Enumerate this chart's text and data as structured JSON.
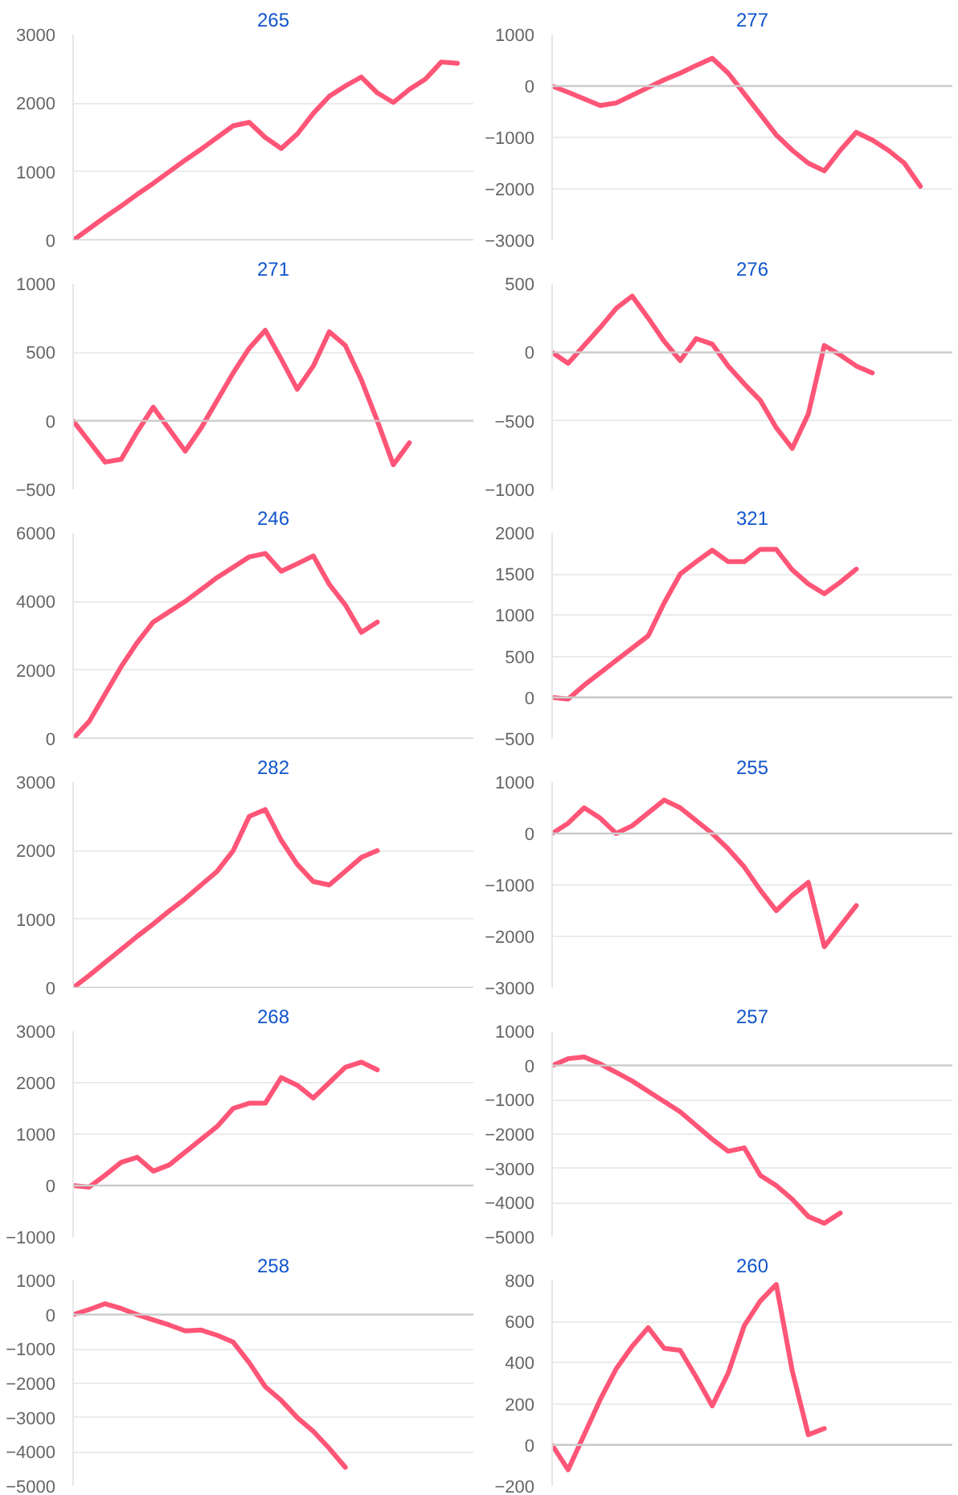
{
  "chart_data": [
    {
      "type": "line",
      "title": "265",
      "color": "#ff5577",
      "grid": "y",
      "tick_labels": "y",
      "ylim": [
        0,
        3000
      ],
      "yticks": [
        0,
        1000,
        2000,
        3000
      ],
      "ref_lines": [
        {
          "axis": "y",
          "value": 0,
          "color": "#cccccc"
        }
      ],
      "categories": [
        null,
        null,
        null,
        null,
        null,
        null,
        null,
        null,
        null,
        null,
        null,
        null,
        null,
        null,
        null,
        null,
        null,
        null,
        null,
        null,
        null,
        null,
        null,
        null,
        null,
        null
      ],
      "values": [
        0,
        170,
        340,
        500,
        670,
        830,
        1000,
        1170,
        1330,
        1500,
        1670,
        1720,
        1500,
        1340,
        1550,
        1850,
        2100,
        2250,
        2380,
        2150,
        2010,
        2200,
        2350,
        2600,
        2580,
        null
      ]
    },
    {
      "type": "line",
      "title": "277",
      "color": "#ff5577",
      "grid": "y",
      "tick_labels": "y",
      "ylim": [
        -3000,
        1000
      ],
      "yticks": [
        -3000,
        -2000,
        -1000,
        0,
        1000
      ],
      "ref_lines": [
        {
          "axis": "y",
          "value": 0,
          "color": "#cccccc"
        }
      ],
      "categories": [
        null,
        null,
        null,
        null,
        null,
        null,
        null,
        null,
        null,
        null,
        null,
        null,
        null,
        null,
        null,
        null,
        null,
        null,
        null,
        null,
        null,
        null,
        null,
        null,
        null,
        null
      ],
      "values": [
        0,
        -120,
        -250,
        -380,
        -330,
        -180,
        -30,
        120,
        250,
        400,
        540,
        250,
        -150,
        -550,
        -950,
        -1250,
        -1500,
        -1650,
        -1250,
        -900,
        -1050,
        -1250,
        -1500,
        -1950,
        null,
        null
      ]
    },
    {
      "type": "line",
      "title": "271",
      "color": "#ff5577",
      "grid": "y",
      "tick_labels": "y",
      "ylim": [
        -500,
        1000
      ],
      "yticks": [
        -500,
        0,
        500,
        1000
      ],
      "ref_lines": [
        {
          "axis": "y",
          "value": 0,
          "color": "#cccccc"
        }
      ],
      "categories": [
        null,
        null,
        null,
        null,
        null,
        null,
        null,
        null,
        null,
        null,
        null,
        null,
        null,
        null,
        null,
        null,
        null,
        null,
        null,
        null,
        null,
        null,
        null,
        null,
        null,
        null
      ],
      "values": [
        0,
        -150,
        -300,
        -280,
        -80,
        100,
        -60,
        -220,
        -50,
        150,
        350,
        530,
        660,
        450,
        230,
        400,
        650,
        550,
        300,
        0,
        -320,
        -160,
        null,
        null,
        null,
        null
      ]
    },
    {
      "type": "line",
      "title": "276",
      "color": "#ff5577",
      "grid": "y",
      "tick_labels": "y",
      "ylim": [
        -1000,
        500
      ],
      "yticks": [
        -1000,
        -500,
        0,
        500
      ],
      "ref_lines": [
        {
          "axis": "y",
          "value": 0,
          "color": "#cccccc"
        }
      ],
      "categories": [
        null,
        null,
        null,
        null,
        null,
        null,
        null,
        null,
        null,
        null,
        null,
        null,
        null,
        null,
        null,
        null,
        null,
        null,
        null,
        null,
        null,
        null,
        null,
        null,
        null,
        null
      ],
      "values": [
        0,
        -80,
        50,
        180,
        320,
        410,
        250,
        80,
        -60,
        100,
        60,
        -100,
        -230,
        -350,
        -550,
        -700,
        -450,
        50,
        -20,
        -100,
        -150,
        null,
        null,
        null,
        null,
        null
      ]
    },
    {
      "type": "line",
      "title": "246",
      "color": "#ff5577",
      "grid": "y",
      "tick_labels": "y",
      "ylim": [
        0,
        6000
      ],
      "yticks": [
        0,
        2000,
        4000,
        6000
      ],
      "ref_lines": [
        {
          "axis": "y",
          "value": 0,
          "color": "#cccccc"
        }
      ],
      "categories": [
        null,
        null,
        null,
        null,
        null,
        null,
        null,
        null,
        null,
        null,
        null,
        null,
        null,
        null,
        null,
        null,
        null,
        null,
        null,
        null,
        null,
        null,
        null,
        null,
        null,
        null
      ],
      "values": [
        0,
        500,
        1300,
        2100,
        2800,
        3400,
        3700,
        4000,
        4350,
        4700,
        5000,
        5300,
        5400,
        4880,
        5100,
        5330,
        4500,
        3900,
        3100,
        3400,
        null,
        null,
        null,
        null,
        null,
        null
      ]
    },
    {
      "type": "line",
      "title": "321",
      "color": "#ff5577",
      "grid": "y",
      "tick_labels": "y",
      "ylim": [
        -500,
        2000
      ],
      "yticks": [
        -500,
        0,
        500,
        1000,
        1500,
        2000
      ],
      "ref_lines": [
        {
          "axis": "y",
          "value": 0,
          "color": "#cccccc"
        }
      ],
      "categories": [
        null,
        null,
        null,
        null,
        null,
        null,
        null,
        null,
        null,
        null,
        null,
        null,
        null,
        null,
        null,
        null,
        null,
        null,
        null,
        null,
        null,
        null,
        null,
        null,
        null,
        null
      ],
      "values": [
        0,
        -20,
        150,
        300,
        450,
        600,
        750,
        1150,
        1500,
        1650,
        1790,
        1650,
        1650,
        1800,
        1800,
        1550,
        1380,
        1260,
        1400,
        1560,
        null,
        null,
        null,
        null,
        null,
        null
      ]
    },
    {
      "type": "line",
      "title": "282",
      "color": "#ff5577",
      "grid": "y",
      "tick_labels": "y",
      "ylim": [
        0,
        3000
      ],
      "yticks": [
        0,
        1000,
        2000,
        3000
      ],
      "ref_lines": [
        {
          "axis": "y",
          "value": 0,
          "color": "#cccccc"
        }
      ],
      "categories": [
        null,
        null,
        null,
        null,
        null,
        null,
        null,
        null,
        null,
        null,
        null,
        null,
        null,
        null,
        null,
        null,
        null,
        null,
        null,
        null,
        null,
        null,
        null,
        null,
        null,
        null
      ],
      "values": [
        0,
        180,
        370,
        560,
        750,
        930,
        1120,
        1300,
        1500,
        1700,
        2000,
        2500,
        2600,
        2150,
        1800,
        1550,
        1500,
        1700,
        1900,
        2000,
        null,
        null,
        null,
        null,
        null,
        null
      ]
    },
    {
      "type": "line",
      "title": "255",
      "color": "#ff5577",
      "grid": "y",
      "tick_labels": "y",
      "ylim": [
        -3000,
        1000
      ],
      "yticks": [
        -3000,
        -2000,
        -1000,
        0,
        1000
      ],
      "ref_lines": [
        {
          "axis": "y",
          "value": 0,
          "color": "#cccccc"
        }
      ],
      "categories": [
        null,
        null,
        null,
        null,
        null,
        null,
        null,
        null,
        null,
        null,
        null,
        null,
        null,
        null,
        null,
        null,
        null,
        null,
        null,
        null,
        null,
        null,
        null,
        null,
        null,
        null
      ],
      "values": [
        0,
        200,
        500,
        300,
        0,
        150,
        400,
        650,
        500,
        250,
        0,
        -300,
        -650,
        -1100,
        -1500,
        -1200,
        -950,
        -2200,
        -1800,
        -1400,
        null,
        null,
        null,
        null,
        null,
        null
      ]
    },
    {
      "type": "line",
      "title": "268",
      "color": "#ff5577",
      "grid": "y",
      "tick_labels": "y",
      "ylim": [
        -1000,
        3000
      ],
      "yticks": [
        -1000,
        0,
        1000,
        2000,
        3000
      ],
      "ref_lines": [
        {
          "axis": "y",
          "value": 0,
          "color": "#cccccc"
        }
      ],
      "categories": [
        null,
        null,
        null,
        null,
        null,
        null,
        null,
        null,
        null,
        null,
        null,
        null,
        null,
        null,
        null,
        null,
        null,
        null,
        null,
        null,
        null,
        null,
        null,
        null,
        null,
        null
      ],
      "values": [
        0,
        -30,
        200,
        450,
        550,
        280,
        400,
        650,
        900,
        1150,
        1500,
        1600,
        1600,
        2100,
        1950,
        1700,
        2000,
        2300,
        2400,
        2250,
        null,
        null,
        null,
        null,
        null,
        null
      ]
    },
    {
      "type": "line",
      "title": "257",
      "color": "#ff5577",
      "grid": "y",
      "tick_labels": "y",
      "ylim": [
        -5000,
        1000
      ],
      "yticks": [
        -5000,
        -4000,
        -3000,
        -2000,
        -1000,
        0,
        1000
      ],
      "ref_lines": [
        {
          "axis": "y",
          "value": 0,
          "color": "#cccccc"
        }
      ],
      "categories": [
        null,
        null,
        null,
        null,
        null,
        null,
        null,
        null,
        null,
        null,
        null,
        null,
        null,
        null,
        null,
        null,
        null,
        null,
        null,
        null,
        null,
        null,
        null,
        null,
        null,
        null
      ],
      "values": [
        0,
        200,
        250,
        50,
        -200,
        -450,
        -750,
        -1050,
        -1350,
        -1750,
        -2150,
        -2500,
        -2400,
        -3200,
        -3500,
        -3900,
        -4400,
        -4600,
        -4300,
        null,
        null,
        null,
        null,
        null,
        null,
        null
      ]
    },
    {
      "type": "line",
      "title": "258",
      "color": "#ff5577",
      "grid": "y",
      "tick_labels": "y",
      "ylim": [
        -5000,
        1000
      ],
      "yticks": [
        -5000,
        -4000,
        -3000,
        -2000,
        -1000,
        0,
        1000
      ],
      "ref_lines": [
        {
          "axis": "y",
          "value": 0,
          "color": "#cccccc"
        }
      ],
      "categories": [
        null,
        null,
        null,
        null,
        null,
        null,
        null,
        null,
        null,
        null,
        null,
        null,
        null,
        null,
        null,
        null,
        null,
        null,
        null,
        null,
        null,
        null,
        null,
        null,
        null,
        null
      ],
      "values": [
        0,
        150,
        320,
        180,
        0,
        -150,
        -300,
        -470,
        -450,
        -600,
        -800,
        -1400,
        -2100,
        -2500,
        -3000,
        -3400,
        -3900,
        -4450,
        null,
        null,
        null,
        null,
        null,
        null,
        null,
        null
      ]
    },
    {
      "type": "line",
      "title": "260",
      "color": "#ff5577",
      "grid": "y",
      "tick_labels": "y",
      "ylim": [
        -200,
        800
      ],
      "yticks": [
        -200,
        0,
        200,
        400,
        600,
        800
      ],
      "ref_lines": [
        {
          "axis": "y",
          "value": 0,
          "color": "#cccccc"
        }
      ],
      "categories": [
        null,
        null,
        null,
        null,
        null,
        null,
        null,
        null,
        null,
        null,
        null,
        null,
        null,
        null,
        null,
        null,
        null,
        null,
        null,
        null,
        null,
        null,
        null,
        null,
        null,
        null
      ],
      "values": [
        0,
        -120,
        50,
        220,
        370,
        480,
        570,
        470,
        460,
        330,
        190,
        350,
        580,
        700,
        780,
        360,
        50,
        80,
        null,
        null,
        null,
        null,
        null,
        null,
        null,
        null
      ]
    }
  ]
}
